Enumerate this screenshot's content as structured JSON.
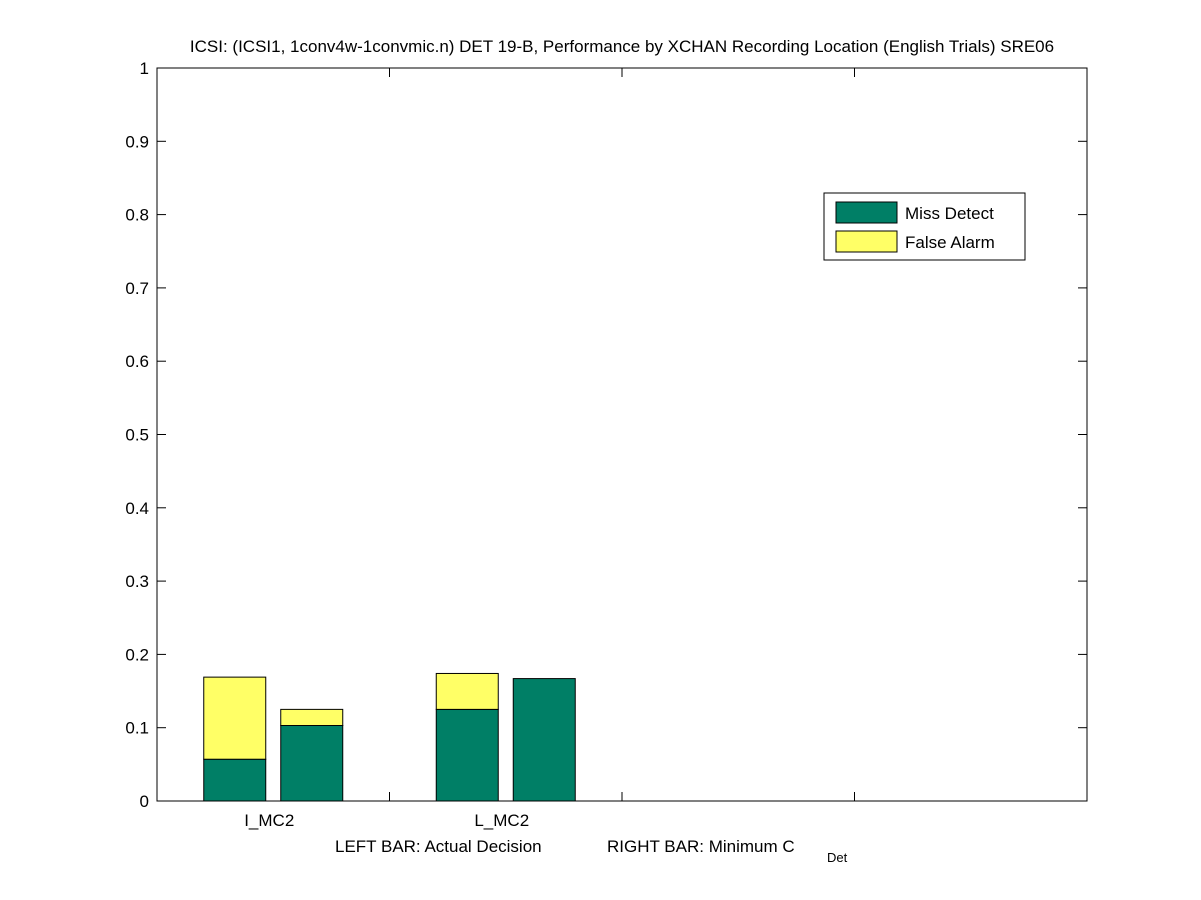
{
  "chart_data": {
    "type": "bar",
    "stacked": true,
    "title": "ICSI: (ICSI1, 1conv4w-1convmic.n) DET 19-B,  Performance by XCHAN Recording Location (English Trials) SRE06",
    "categories": [
      "I_MC2",
      "L_MC2"
    ],
    "bar_positions": [
      "LEFT BAR: Actual Decision",
      "RIGHT BAR: Minimum C"
    ],
    "xlabel": {
      "left_text": "LEFT BAR: Actual Decision",
      "right_text": "RIGHT BAR: Minimum C",
      "right_subscript": "Det"
    },
    "ylim": [
      0,
      1
    ],
    "yticks": [
      "0",
      "0.1",
      "0.2",
      "0.3",
      "0.4",
      "0.5",
      "0.6",
      "0.7",
      "0.8",
      "0.9",
      "1"
    ],
    "series": [
      {
        "name": "Miss Detect",
        "color": "#007f66",
        "values": [
          [
            0.057,
            0.103
          ],
          [
            0.125,
            0.167
          ]
        ]
      },
      {
        "name": "False Alarm",
        "color": "#ffff66",
        "values": [
          [
            0.112,
            0.022
          ],
          [
            0.049,
            0.0
          ]
        ]
      }
    ],
    "legend": {
      "position": "top-right",
      "entries": [
        "Miss Detect",
        "False Alarm"
      ]
    },
    "grid": false
  }
}
